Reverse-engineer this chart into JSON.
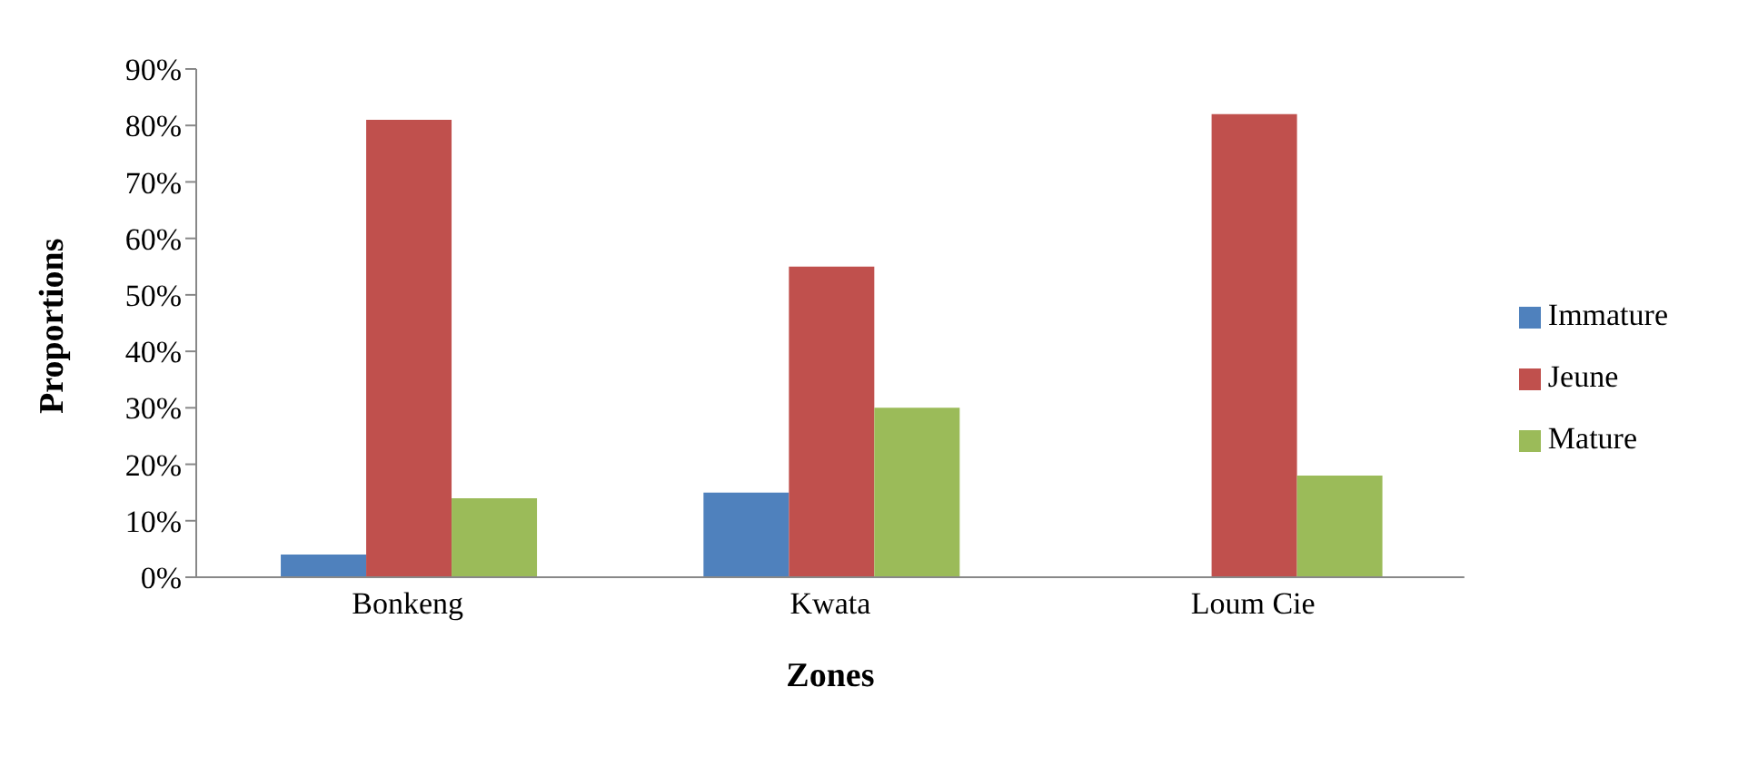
{
  "chart_data": {
    "type": "bar",
    "xlabel": "Zones",
    "ylabel": "Proportions",
    "categories": [
      "Bonkeng",
      "Kwata",
      "Loum Cie"
    ],
    "series": [
      {
        "name": "Immature",
        "color": "#4f81bd",
        "values": [
          4,
          15,
          0
        ]
      },
      {
        "name": "Jeune",
        "color": "#c0504d",
        "values": [
          81,
          55,
          82
        ]
      },
      {
        "name": "Mature",
        "color": "#9bbb59",
        "values": [
          14,
          30,
          18
        ]
      }
    ],
    "ylim": [
      0,
      90
    ],
    "yticks": [
      {
        "value": 0,
        "label": "0%"
      },
      {
        "value": 10,
        "label": "10%"
      },
      {
        "value": 20,
        "label": "20%"
      },
      {
        "value": 30,
        "label": "30%"
      },
      {
        "value": 40,
        "label": "40%"
      },
      {
        "value": 50,
        "label": "50%"
      },
      {
        "value": 60,
        "label": "60%"
      },
      {
        "value": 70,
        "label": "70%"
      },
      {
        "value": 80,
        "label": "80%"
      },
      {
        "value": 90,
        "label": "90%"
      }
    ],
    "grid": false,
    "legend": "right"
  }
}
